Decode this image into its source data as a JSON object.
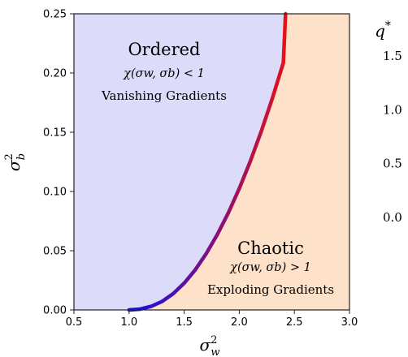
{
  "chart_data": {
    "type": "area",
    "xlim": [
      0.5,
      3.0
    ],
    "ylim": [
      0.0,
      0.25
    ],
    "x_ticks": [
      0.5,
      1.0,
      1.5,
      2.0,
      2.5,
      3.0
    ],
    "y_ticks": [
      0.0,
      0.05,
      0.1,
      0.15,
      0.2,
      0.25
    ],
    "x_tick_labels": [
      "0.5",
      "1.0",
      "1.5",
      "2.0",
      "2.5",
      "3.0"
    ],
    "y_tick_labels": [
      "0.00",
      "0.05",
      "0.10",
      "0.15",
      "0.20",
      "0.25"
    ],
    "xlabel_base": "σ",
    "xlabel_sup": "2",
    "xlabel_sub": "w",
    "ylabel_base": "σ",
    "ylabel_sup": "2",
    "ylabel_sub": "b",
    "grid": false,
    "regions": [
      {
        "title": "Ordered",
        "formula": "χ(σw, σb) < 1",
        "caption": "Vanishing Gradients",
        "color": "#dcdcfa"
      },
      {
        "title": "Chaotic",
        "formula": "χ(σw, σb) > 1",
        "caption": "Exploding Gradients",
        "color": "#fde1c8"
      }
    ],
    "boundary_curve": {
      "colored_by": "q*",
      "x": [
        1.0,
        1.1,
        1.2,
        1.3,
        1.4,
        1.5,
        1.6,
        1.7,
        1.8,
        1.9,
        2.0,
        2.1,
        2.2,
        2.3,
        2.4,
        2.42
      ],
      "y": [
        0.0,
        0.0007,
        0.003,
        0.0072,
        0.0137,
        0.0226,
        0.0338,
        0.0475,
        0.0635,
        0.0818,
        0.1025,
        0.1255,
        0.1509,
        0.1786,
        0.2087,
        0.25
      ]
    },
    "colorbar": {
      "label_base": "q",
      "label_sup": "*",
      "min": 0.0,
      "max": 1.5,
      "ticks": [
        0.0,
        0.5,
        1.0,
        1.5
      ],
      "tick_labels": [
        "0.0",
        "0.5",
        "1.0",
        "1.5"
      ],
      "color_low": "#1010ee",
      "color_high": "#ee1010"
    }
  }
}
